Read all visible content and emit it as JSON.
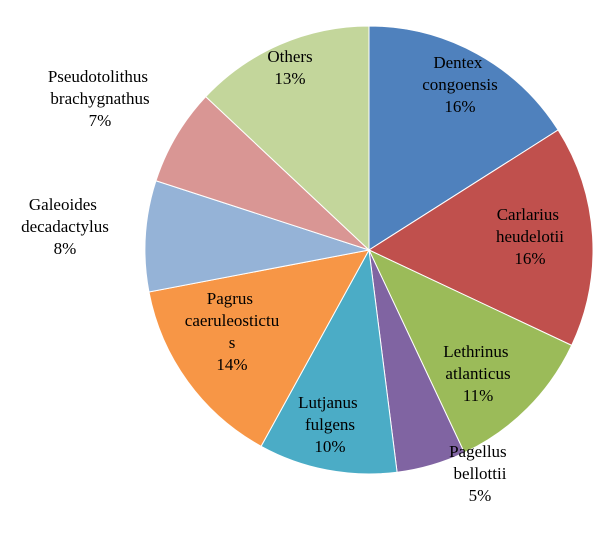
{
  "chart_data": {
    "type": "pie",
    "categories": [
      "Dentex congoensis",
      "Carlarius heudelotii",
      "Lethrinus atlanticus",
      "Pagellus bellottii",
      "Lutjanus fulgens",
      "Pagrus caeruleostictus",
      "Galeoides decadactylus",
      "Pseudotolithus brachygnathus",
      "Others"
    ],
    "values": [
      16,
      16,
      11,
      5,
      10,
      14,
      8,
      7,
      13
    ],
    "value_labels": [
      "16%",
      "16%",
      "11%",
      "5%",
      "10%",
      "14%",
      "8%",
      "7%",
      "13%"
    ],
    "colors": [
      "#4f81bd",
      "#c0504d",
      "#9bbb59",
      "#8064a2",
      "#4bacc6",
      "#f79646",
      "#95b3d7",
      "#d99694",
      "#c3d69b"
    ]
  }
}
